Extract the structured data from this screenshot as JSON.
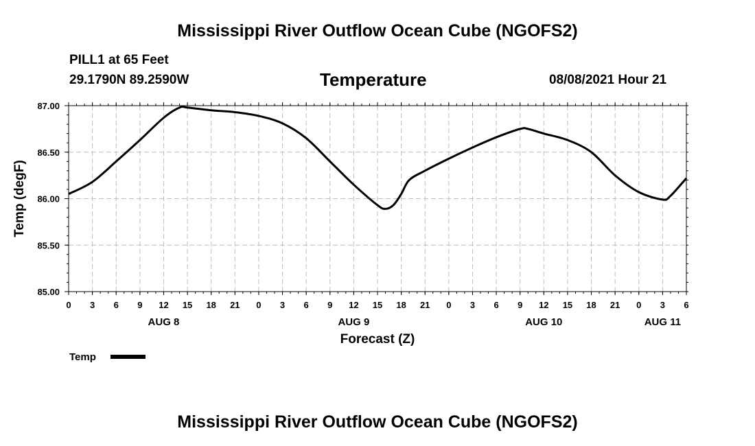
{
  "header": {
    "title": "Mississippi River Outflow Ocean Cube (NGOFS2)",
    "station": "PILL1 at 65 Feet",
    "coordinates": "29.1790N  89.2590W",
    "parameter": "Temperature",
    "datetime": "08/08/2021 Hour 21"
  },
  "footer": {
    "title": "Mississippi River Outflow Ocean Cube (NGOFS2)"
  },
  "chart_data": {
    "type": "line",
    "title": "Temperature",
    "xlabel": "Forecast (Z)",
    "ylabel": "Temp (degF)",
    "ylim": [
      85.0,
      87.0
    ],
    "xlim": [
      0,
      78
    ],
    "grid": true,
    "legend_position": "bottom-left",
    "y_ticks": [
      {
        "value": 85.0,
        "label": "85.00"
      },
      {
        "value": 85.5,
        "label": "85.50"
      },
      {
        "value": 86.0,
        "label": "86.00"
      },
      {
        "value": 86.5,
        "label": "86.50"
      },
      {
        "value": 87.0,
        "label": "87.00"
      }
    ],
    "x_ticks": [
      "0",
      "3",
      "6",
      "9",
      "12",
      "15",
      "18",
      "21",
      "0",
      "3",
      "6",
      "9",
      "12",
      "15",
      "18",
      "21",
      "0",
      "3",
      "6",
      "9",
      "12",
      "15",
      "18",
      "21",
      "0",
      "3",
      "6"
    ],
    "day_labels": [
      {
        "label": "AUG 8",
        "hour": 12
      },
      {
        "label": "AUG 9",
        "hour": 36
      },
      {
        "label": "AUG 10",
        "hour": 60
      },
      {
        "label": "AUG 11",
        "hour": 75
      }
    ],
    "series": [
      {
        "name": "Temp",
        "color": "#000000",
        "x": [
          0,
          3,
          6,
          9,
          12,
          14,
          15,
          18,
          21,
          24,
          27,
          30,
          33,
          36,
          39,
          40,
          41,
          42,
          43,
          45,
          48,
          51,
          54,
          57,
          58,
          60,
          63,
          66,
          69,
          72,
          75,
          76,
          78
        ],
        "values": [
          86.05,
          86.18,
          86.4,
          86.63,
          86.87,
          86.98,
          86.98,
          86.95,
          86.93,
          86.89,
          86.81,
          86.65,
          86.4,
          86.15,
          85.93,
          85.89,
          85.93,
          86.05,
          86.2,
          86.3,
          86.43,
          86.55,
          86.66,
          86.75,
          86.75,
          86.7,
          86.63,
          86.5,
          86.25,
          86.07,
          85.99,
          86.03,
          86.22
        ]
      }
    ]
  }
}
